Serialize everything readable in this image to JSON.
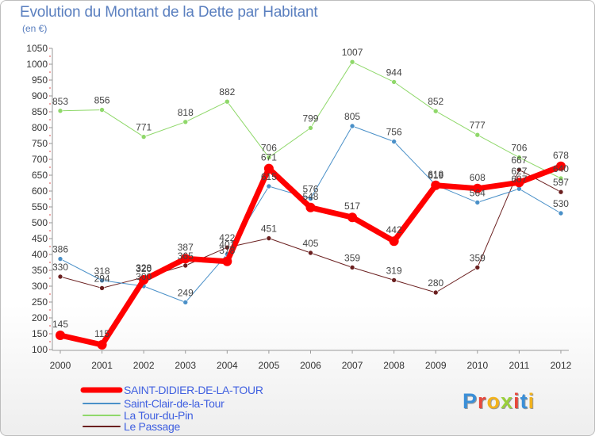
{
  "title": "Evolution du Montant de la Dette par Habitant",
  "subtitle": "(en €)",
  "logo": {
    "letters": [
      "P",
      "r",
      "o",
      "x",
      "i",
      "t",
      "i"
    ],
    "colors": [
      "#3a8fd8",
      "#e8473c",
      "#f2b21c",
      "#9bd03c",
      "#e8473c",
      "#3a8fd8",
      "#f2b21c"
    ]
  },
  "chart_data": {
    "type": "line",
    "title": "Evolution du Montant de la Dette par Habitant",
    "ylabel": "(en €)",
    "xlabel": "",
    "x": [
      "2000",
      "2001",
      "2002",
      "2003",
      "2004",
      "2005",
      "2006",
      "2007",
      "2008",
      "2009",
      "2010",
      "2011",
      "2012"
    ],
    "ylim": [
      100,
      1050
    ],
    "yticks": [
      100,
      150,
      200,
      250,
      300,
      350,
      400,
      450,
      500,
      550,
      600,
      650,
      700,
      750,
      800,
      850,
      900,
      950,
      1000,
      1050
    ],
    "grid": false,
    "legend_position": "bottom-left",
    "series": [
      {
        "name": "SAINT-DIDIER-DE-LA-TOUR",
        "color": "#ff0000",
        "values": [
          145,
          115,
          320,
          387,
          378,
          671,
          548,
          517,
          442,
          618,
          608,
          627,
          678
        ]
      },
      {
        "name": "Saint-Clair-de-la-Tour",
        "color": "#4a90c8",
        "values": [
          386,
          318,
          300,
          249,
          401,
          615,
          576,
          805,
          756,
          619,
          564,
          607,
          530
        ]
      },
      {
        "name": "La Tour-du-Pin",
        "color": "#8fd86a",
        "values": [
          853,
          856,
          771,
          818,
          882,
          706,
          799,
          1007,
          944,
          852,
          777,
          706,
          640
        ]
      },
      {
        "name": "Le Passage",
        "color": "#6b2020",
        "values": [
          330,
          294,
          328,
          365,
          422,
          451,
          405,
          359,
          319,
          280,
          359,
          667,
          597
        ]
      }
    ],
    "data_labels": [
      [
        "145",
        "115",
        "320",
        "387",
        "378",
        "671",
        "548",
        "517",
        "442",
        "618",
        "608",
        "627",
        "678"
      ],
      [
        "386",
        "318",
        "300",
        "249",
        "401",
        "615",
        "576",
        "805",
        "756",
        "619",
        "564",
        "607",
        "530"
      ],
      [
        "853",
        "856",
        "771",
        "818",
        "882",
        "706",
        "799",
        "1007",
        "944",
        "852",
        "777",
        "706",
        "640"
      ],
      [
        "330",
        "294",
        "328",
        "365",
        "422",
        "451",
        "405",
        "359",
        "319",
        "280",
        "359",
        "667",
        "597"
      ]
    ]
  }
}
